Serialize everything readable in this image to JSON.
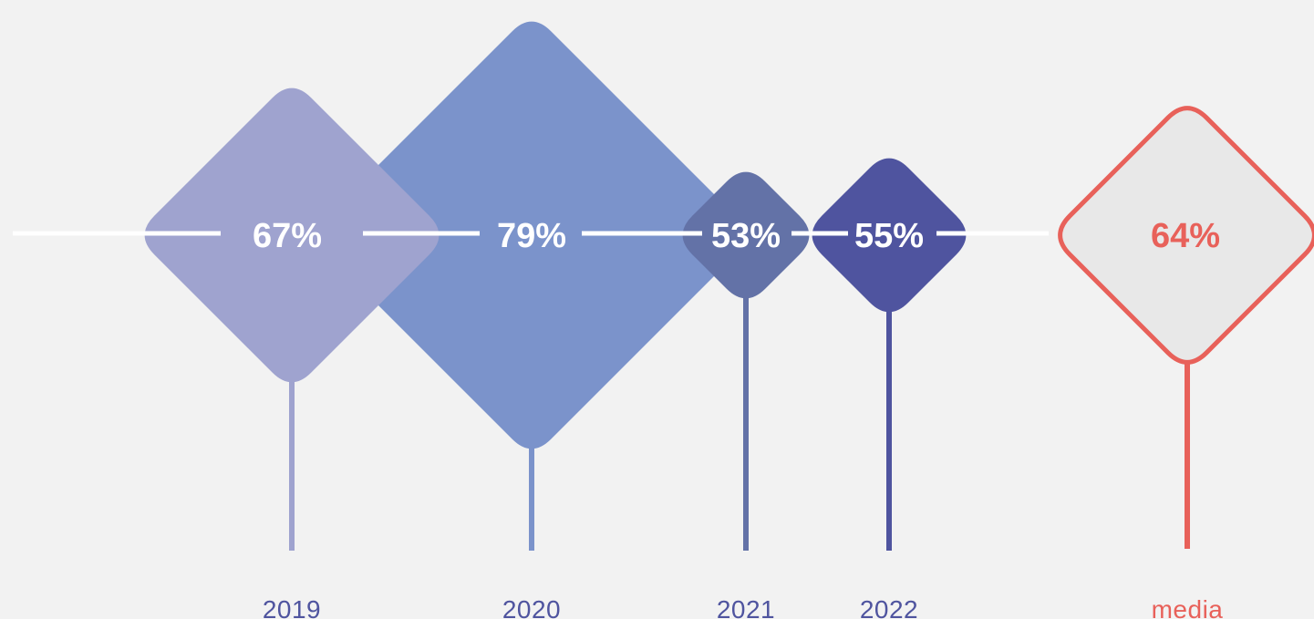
{
  "chart_data": {
    "type": "diamond-bubble",
    "title": "",
    "xlabel": "",
    "ylabel": "",
    "categories": [
      "2019",
      "2020",
      "2021",
      "2022"
    ],
    "values": [
      67,
      79,
      53,
      55
    ],
    "value_suffix": "%",
    "average": {
      "label": "media",
      "value": 64
    },
    "colors": {
      "2019": "#9fa3cf",
      "2020": "#7b93cb",
      "2021": "#6372a7",
      "2022": "#4f549f",
      "average_stroke": "#e8615a",
      "average_fill": "#e8e8e8",
      "baseline": "#ffffff",
      "value_text": "#ffffff",
      "category_text": "#4f549f"
    },
    "legend": "none",
    "grid": false
  }
}
